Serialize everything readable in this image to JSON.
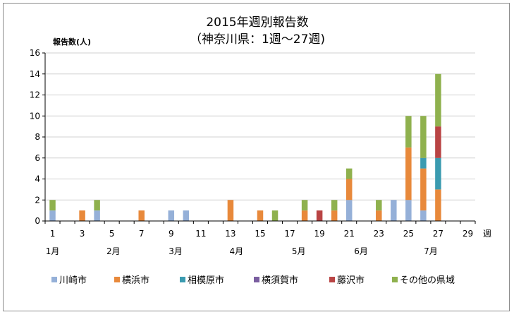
{
  "chart_data": {
    "type": "bar",
    "stacked": true,
    "title": "2015年週別報告数",
    "subtitle": "（神奈川県：1週～27週)",
    "ylabel": "報告数(人)",
    "xlabel": "週",
    "ylim": [
      0,
      16
    ],
    "yticks": [
      0,
      2,
      4,
      6,
      8,
      10,
      12,
      14,
      16
    ],
    "x": [
      1,
      2,
      3,
      4,
      5,
      6,
      7,
      8,
      9,
      10,
      11,
      12,
      13,
      14,
      15,
      16,
      17,
      18,
      19,
      20,
      21,
      22,
      23,
      24,
      25,
      26,
      27,
      28,
      29
    ],
    "xtick_labels": [
      "1",
      "3",
      "5",
      "7",
      "9",
      "11",
      "13",
      "15",
      "17",
      "19",
      "21",
      "23",
      "25",
      "27",
      "29"
    ],
    "xtick_positions": [
      1,
      3,
      5,
      7,
      9,
      11,
      13,
      15,
      17,
      19,
      21,
      23,
      25,
      27,
      29
    ],
    "months": [
      {
        "label": "1月",
        "week": 1
      },
      {
        "label": "2月",
        "week": 5.1
      },
      {
        "label": "3月",
        "week": 9.3
      },
      {
        "label": "4月",
        "week": 13.4
      },
      {
        "label": "5月",
        "week": 17.6
      },
      {
        "label": "6月",
        "week": 21.8
      },
      {
        "label": "7月",
        "week": 26.5
      }
    ],
    "grid": "horizontal",
    "legend": "bottom",
    "series": [
      {
        "name": "川崎市",
        "color": "#95b0d8",
        "values": [
          1,
          0,
          0,
          1,
          0,
          0,
          0,
          0,
          1,
          1,
          0,
          0,
          0,
          0,
          0,
          0,
          0,
          0,
          0,
          0,
          2,
          0,
          0,
          2,
          2,
          1,
          0,
          0,
          0
        ]
      },
      {
        "name": "横浜市",
        "color": "#e8893b",
        "values": [
          0,
          0,
          1,
          0,
          0,
          0,
          1,
          0,
          0,
          0,
          0,
          0,
          2,
          0,
          1,
          0,
          0,
          1,
          0,
          1,
          2,
          0,
          1,
          0,
          5,
          4,
          3,
          0,
          0
        ]
      },
      {
        "name": "相模原市",
        "color": "#3b9bb0",
        "values": [
          0,
          0,
          0,
          0,
          0,
          0,
          0,
          0,
          0,
          0,
          0,
          0,
          0,
          0,
          0,
          0,
          0,
          0,
          0,
          0,
          0,
          0,
          0,
          0,
          0,
          1,
          3,
          0,
          0
        ]
      },
      {
        "name": "横須賀市",
        "color": "#7a5ea0",
        "values": [
          0,
          0,
          0,
          0,
          0,
          0,
          0,
          0,
          0,
          0,
          0,
          0,
          0,
          0,
          0,
          0,
          0,
          0,
          0,
          0,
          0,
          0,
          0,
          0,
          0,
          0,
          0,
          0,
          0
        ]
      },
      {
        "name": "藤沢市",
        "color": "#b94444",
        "values": [
          0,
          0,
          0,
          0,
          0,
          0,
          0,
          0,
          0,
          0,
          0,
          0,
          0,
          0,
          0,
          0,
          0,
          0,
          1,
          0,
          0,
          0,
          0,
          0,
          0,
          0,
          3,
          0,
          0
        ]
      },
      {
        "name": "その他の県域",
        "color": "#8fb14e",
        "values": [
          1,
          0,
          0,
          1,
          0,
          0,
          0,
          0,
          0,
          0,
          0,
          0,
          0,
          0,
          0,
          1,
          0,
          1,
          0,
          1,
          1,
          0,
          1,
          0,
          3,
          4,
          5,
          0,
          0
        ]
      }
    ]
  }
}
